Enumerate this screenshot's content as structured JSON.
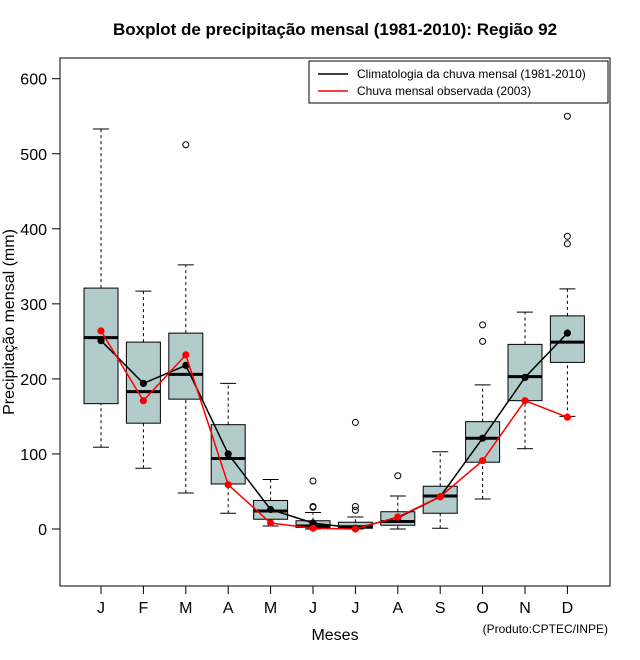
{
  "chart_data": {
    "type": "boxplot",
    "title": "Boxplot de precipitação mensal (1981-2010): Região 92",
    "xlabel": "Meses",
    "ylabel": "Precipitação mensal (mm)",
    "ylim": [
      -75,
      630
    ],
    "yticks": [
      0,
      100,
      200,
      300,
      400,
      500,
      600
    ],
    "categories": [
      "J",
      "F",
      "M",
      "A",
      "M",
      "J",
      "J",
      "A",
      "S",
      "O",
      "N",
      "D"
    ],
    "boxes": [
      {
        "min": 109,
        "q1": 167,
        "median": 255,
        "q3": 321,
        "max": 533,
        "outliers": []
      },
      {
        "min": 81,
        "q1": 141,
        "median": 183,
        "q3": 249,
        "max": 317,
        "outliers": []
      },
      {
        "min": 48,
        "q1": 173,
        "median": 206,
        "q3": 261,
        "max": 352,
        "outliers": [
          512
        ]
      },
      {
        "min": 21,
        "q1": 60,
        "median": 94,
        "q3": 139,
        "max": 194,
        "outliers": []
      },
      {
        "min": 4,
        "q1": 13,
        "median": 24,
        "q3": 38,
        "max": 66,
        "outliers": []
      },
      {
        "min": 0,
        "q1": 2,
        "median": 4,
        "q3": 11,
        "max": 22,
        "outliers": [
          64,
          30,
          29
        ]
      },
      {
        "min": 0,
        "q1": 1,
        "median": 3,
        "q3": 9,
        "max": 16,
        "outliers": [
          142,
          30,
          25
        ]
      },
      {
        "min": 0,
        "q1": 5,
        "median": 10,
        "q3": 23,
        "max": 44,
        "outliers": [
          71
        ]
      },
      {
        "min": 1,
        "q1": 21,
        "median": 44,
        "q3": 57,
        "max": 103,
        "outliers": []
      },
      {
        "min": 40,
        "q1": 89,
        "median": 121,
        "q3": 143,
        "max": 192,
        "outliers": [
          272,
          250
        ]
      },
      {
        "min": 107,
        "q1": 171,
        "median": 203,
        "q3": 246,
        "max": 289,
        "outliers": []
      },
      {
        "min": 150,
        "q1": 222,
        "median": 249,
        "q3": 284,
        "max": 320,
        "outliers": [
          550,
          390,
          380
        ]
      }
    ],
    "series": [
      {
        "name": "Climatologia da chuva mensal (1981-2010)",
        "color": "#000000",
        "values": [
          251,
          194,
          218,
          100,
          26,
          8,
          1,
          15,
          43,
          121,
          202,
          261
        ]
      },
      {
        "name": "Chuva mensal observada (2003)",
        "color": "#ff0000",
        "values": [
          264,
          171,
          232,
          59,
          8,
          1,
          0,
          16,
          43,
          91,
          171,
          149
        ]
      }
    ],
    "box_color": "#b2cbcb",
    "legend_position": "top-right",
    "credit": "(Produto:CPTEC/INPE)"
  }
}
